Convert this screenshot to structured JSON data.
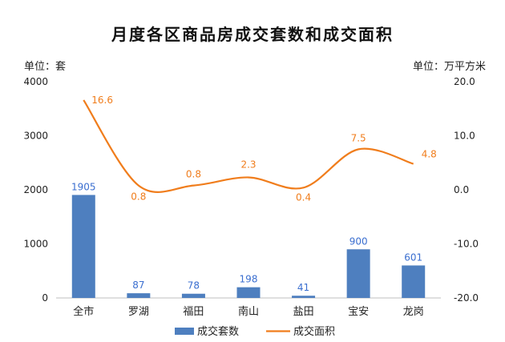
{
  "chart_data": {
    "type": "bar",
    "title": "月度各区商品房成交套数和成交面积",
    "left_unit": "单位：套",
    "right_unit": "单位：万平方米",
    "categories": [
      "全市",
      "罗湖",
      "福田",
      "南山",
      "盐田",
      "宝安",
      "龙岗"
    ],
    "series": [
      {
        "name": "成交套数",
        "type": "bar",
        "axis": "left",
        "color": "#4e7fbf",
        "values": [
          1905,
          87,
          78,
          198,
          41,
          900,
          601
        ],
        "labels": [
          "1905",
          "87",
          "78",
          "198",
          "41",
          "900",
          "601"
        ]
      },
      {
        "name": "成交面积",
        "type": "line",
        "axis": "right",
        "color": "#f07d1c",
        "values": [
          16.6,
          0.8,
          0.8,
          2.3,
          0.4,
          7.5,
          4.8
        ],
        "labels": [
          "16.6",
          "0.8",
          "0.8",
          "2.3",
          "0.4",
          "7.5",
          "4.8"
        ]
      }
    ],
    "y_left": {
      "range": [
        0,
        4000
      ],
      "ticks": [
        0,
        1000,
        2000,
        3000,
        4000
      ],
      "tick_labels": [
        "0",
        "1000",
        "2000",
        "3000",
        "4000"
      ]
    },
    "y_right": {
      "range": [
        -20,
        20
      ],
      "ticks": [
        -20,
        -10,
        0,
        10,
        20
      ],
      "tick_labels": [
        "-20.0",
        "-10.0",
        "0.0",
        "10.0",
        "20.0"
      ]
    },
    "grid": false,
    "legend_position": "bottom"
  }
}
